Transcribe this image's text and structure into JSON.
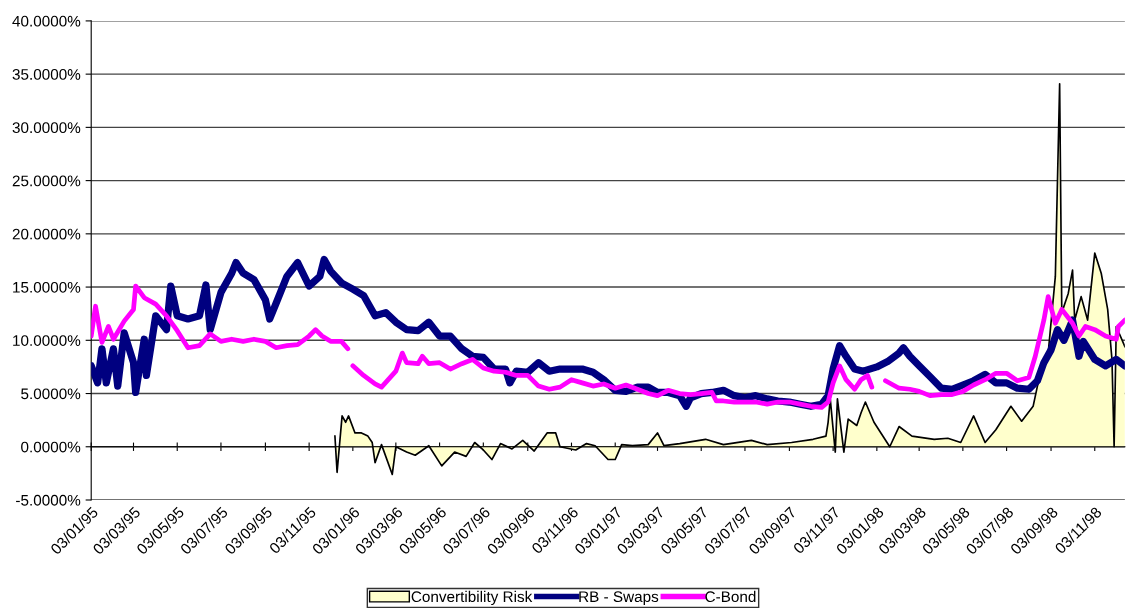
{
  "chart_data": {
    "type": "line",
    "ylim": [
      -5,
      40
    ],
    "yticks": [
      {
        "value": -5,
        "label": "-5.0000%"
      },
      {
        "value": 0,
        "label": "0.0000%"
      },
      {
        "value": 5,
        "label": "5.0000%"
      },
      {
        "value": 10,
        "label": "10.0000%"
      },
      {
        "value": 15,
        "label": "15.0000%"
      },
      {
        "value": 20,
        "label": "20.0000%"
      },
      {
        "value": 25,
        "label": "25.0000%"
      },
      {
        "value": 30,
        "label": "30.0000%"
      },
      {
        "value": 35,
        "label": "35.0000%"
      },
      {
        "value": 40,
        "label": "40.0000%"
      }
    ],
    "xlim": [
      "1995-01-03",
      "1998-12-15"
    ],
    "xticks": [
      {
        "value": "1995-01-03",
        "label": "03/01/95"
      },
      {
        "value": "1995-03-03",
        "label": "03/03/95"
      },
      {
        "value": "1995-05-03",
        "label": "03/05/95"
      },
      {
        "value": "1995-07-03",
        "label": "03/07/95"
      },
      {
        "value": "1995-09-03",
        "label": "03/09/95"
      },
      {
        "value": "1995-11-03",
        "label": "03/11/95"
      },
      {
        "value": "1996-01-03",
        "label": "03/01/96"
      },
      {
        "value": "1996-03-03",
        "label": "03/03/96"
      },
      {
        "value": "1996-05-03",
        "label": "03/05/96"
      },
      {
        "value": "1996-07-03",
        "label": "03/07/96"
      },
      {
        "value": "1996-09-03",
        "label": "03/09/96"
      },
      {
        "value": "1996-11-03",
        "label": "03/11/96"
      },
      {
        "value": "1997-01-03",
        "label": "03/01/97"
      },
      {
        "value": "1997-03-03",
        "label": "03/03/97"
      },
      {
        "value": "1997-05-03",
        "label": "03/05/97"
      },
      {
        "value": "1997-07-03",
        "label": "03/07/97"
      },
      {
        "value": "1997-09-03",
        "label": "03/09/97"
      },
      {
        "value": "1997-11-03",
        "label": "03/11/97"
      },
      {
        "value": "1998-01-03",
        "label": "03/01/98"
      },
      {
        "value": "1998-03-03",
        "label": "03/03/98"
      },
      {
        "value": "1998-05-03",
        "label": "03/05/98"
      },
      {
        "value": "1998-07-03",
        "label": "03/07/98"
      },
      {
        "value": "1998-09-03",
        "label": "03/09/98"
      },
      {
        "value": "1998-11-03",
        "label": "03/11/98"
      }
    ],
    "grid": "y",
    "legend": "bottom",
    "series": [
      {
        "name": "Convertibility Risk",
        "type": "area",
        "color": "#ffffcc",
        "x": [
          "1995-12-09",
          "1995-12-12",
          "1995-12-19",
          "1995-12-24",
          "1995-12-28",
          "1996-01-06",
          "1996-01-15",
          "1996-01-24",
          "1996-01-30",
          "1996-02-03",
          "1996-02-12",
          "1996-02-27",
          "1996-03-03",
          "1996-03-18",
          "1996-03-30",
          "1996-04-18",
          "1996-05-06",
          "1996-05-24",
          "1996-06-09",
          "1996-06-21",
          "1996-07-03",
          "1996-07-15",
          "1996-07-27",
          "1996-08-12",
          "1996-08-27",
          "1996-09-12",
          "1996-09-30",
          "1996-10-12",
          "1996-10-18",
          "1996-11-09",
          "1996-11-24",
          "1996-12-06",
          "1996-12-24",
          "1997-01-03",
          "1997-01-12",
          "1997-01-27",
          "1997-02-18",
          "1997-03-03",
          "1997-03-12",
          "1997-04-03",
          "1997-05-09",
          "1997-06-03",
          "1997-07-12",
          "1997-08-03",
          "1997-09-06",
          "1997-10-06",
          "1997-10-24",
          "1997-10-27",
          "1997-10-30",
          "1997-11-06",
          "1997-11-09",
          "1997-11-18",
          "1997-11-24",
          "1997-12-06",
          "1997-12-12",
          "1997-12-18",
          "1997-12-30",
          "1998-01-21",
          "1998-02-03",
          "1998-02-21",
          "1998-03-24",
          "1998-04-12",
          "1998-04-30",
          "1998-05-18",
          "1998-06-03",
          "1998-06-18",
          "1998-07-09",
          "1998-07-24",
          "1998-08-09",
          "1998-08-15",
          "1998-08-30",
          "1998-09-09",
          "1998-09-15",
          "1998-09-18",
          "1998-09-27",
          "1998-10-03",
          "1998-10-06",
          "1998-10-15",
          "1998-10-24",
          "1998-11-03",
          "1998-11-12",
          "1998-11-21",
          "1998-11-27",
          "1998-11-30",
          "1998-12-03",
          "1998-12-15"
        ],
        "values": [
          1.0,
          -2.4,
          2.9,
          2.3,
          2.9,
          1.3,
          1.3,
          1.0,
          0.4,
          -1.5,
          0.2,
          -2.6,
          0,
          -0.5,
          -0.8,
          0.1,
          -1.8,
          -0.5,
          -0.9,
          0.4,
          -0.3,
          -1.2,
          0.3,
          -0.2,
          0.6,
          -0.4,
          1.3,
          1.3,
          0,
          -0.3,
          0.3,
          0.1,
          -1.2,
          -1.2,
          0.2,
          0.1,
          0.2,
          1.3,
          0.1,
          0.3,
          0.7,
          0.2,
          0.6,
          0.2,
          0.4,
          0.7,
          1.0,
          2.3,
          4.5,
          -0.5,
          4.5,
          -0.5,
          2.6,
          2.0,
          3.2,
          4.2,
          2.3,
          0,
          1.9,
          1.0,
          0.7,
          0.8,
          0.4,
          2.9,
          0.4,
          1.6,
          3.8,
          2.4,
          3.8,
          5.7,
          8.8,
          16,
          34.1,
          12.6,
          14.4,
          16.6,
          11.9,
          14.1,
          11.9,
          18.2,
          16.3,
          12.9,
          8.2,
          0,
          11.3,
          9.4
        ]
      },
      {
        "name": "RB - Swaps",
        "color": "#000080",
        "x": [
          "1995-01-03",
          "1995-01-12",
          "1995-01-18",
          "1995-01-24",
          "1995-02-03",
          "1995-02-09",
          "1995-02-18",
          "1995-03-03",
          "1995-03-06",
          "1995-03-18",
          "1995-03-21",
          "1995-04-03",
          "1995-04-18",
          "1995-04-24",
          "1995-05-03",
          "1995-05-18",
          "1995-06-03",
          "1995-06-12",
          "1995-06-18",
          "1995-07-03",
          "1995-07-18",
          "1995-07-24",
          "1995-08-03",
          "1995-08-18",
          "1995-09-03",
          "1995-09-09",
          "1995-09-18",
          "1995-10-03",
          "1995-10-18",
          "1995-11-03",
          "1995-11-18",
          "1995-11-24",
          "1995-12-03",
          "1995-12-18",
          "1996-01-03",
          "1996-01-18",
          "1996-02-03",
          "1996-02-18",
          "1996-03-03",
          "1996-03-18",
          "1996-04-03",
          "1996-04-18",
          "1996-05-03",
          "1996-05-18",
          "1996-06-03",
          "1996-06-18",
          "1996-07-03",
          "1996-07-18",
          "1996-08-03",
          "1996-08-09",
          "1996-08-18",
          "1996-09-03",
          "1996-09-18",
          "1996-10-03",
          "1996-10-18",
          "1996-11-03",
          "1996-11-18",
          "1996-12-03",
          "1996-12-18",
          "1997-01-03",
          "1997-01-18",
          "1997-02-03",
          "1997-02-18",
          "1997-03-03",
          "1997-03-18",
          "1997-04-03",
          "1997-04-12",
          "1997-04-18",
          "1997-05-03",
          "1997-05-18",
          "1997-06-03",
          "1997-06-18",
          "1997-07-03",
          "1997-07-18",
          "1997-08-03",
          "1997-08-18",
          "1997-09-03",
          "1997-09-18",
          "1997-10-03",
          "1997-10-18",
          "1997-10-27",
          "1997-11-03",
          "1997-11-12",
          "1997-11-21",
          "1997-12-03",
          "1997-12-15",
          "1998-01-03",
          "1998-01-18",
          "1998-02-03",
          "1998-02-09",
          "1998-02-18",
          "1998-03-03",
          "1998-03-18",
          "1998-04-03",
          "1998-04-18",
          "1998-05-03",
          "1998-05-18",
          "1998-06-03",
          "1998-06-18",
          "1998-07-03",
          "1998-07-18",
          "1998-08-03",
          "1998-08-15",
          "1998-08-24",
          "1998-09-03",
          "1998-09-12",
          "1998-09-21",
          "1998-10-03",
          "1998-10-12",
          "1998-10-18",
          "1998-11-03",
          "1998-11-18",
          "1998-12-03",
          "1998-12-15"
        ],
        "values": [
          7.6,
          6,
          9.2,
          6,
          9.2,
          5.7,
          10.7,
          7.9,
          5.1,
          10.1,
          6.7,
          12.3,
          11,
          15.1,
          12.3,
          12,
          12.3,
          15.2,
          11,
          14.5,
          16.3,
          17.3,
          16.3,
          15.7,
          13.8,
          12,
          13.5,
          16,
          17.3,
          15.1,
          16,
          17.6,
          16.5,
          15.4,
          14.8,
          14.2,
          12.3,
          12.6,
          11.7,
          11,
          10.9,
          11.7,
          10.4,
          10.4,
          9.2,
          8.5,
          8.4,
          7.3,
          7.3,
          6,
          7.1,
          7,
          7.9,
          7.1,
          7.3,
          7.3,
          7.3,
          7,
          6.3,
          5.3,
          5.2,
          5.6,
          5.6,
          5.1,
          5.1,
          4.8,
          3.8,
          4.6,
          5,
          5.1,
          5.3,
          4.8,
          4.6,
          4.8,
          4.5,
          4.3,
          4.2,
          4,
          3.8,
          4,
          4.8,
          7.3,
          9.5,
          8.5,
          7.3,
          7.1,
          7.5,
          8,
          8.8,
          9.3,
          8.5,
          7.6,
          6.6,
          5.5,
          5.4,
          5.8,
          6.2,
          6.8,
          6,
          6,
          5.5,
          5.4,
          6.2,
          7.9,
          9.1,
          11,
          10,
          11.9,
          8.5,
          9.9,
          8.2,
          7.6,
          8.2,
          7.6
        ]
      },
      {
        "name": "C-Bond",
        "color": "#ff00ff",
        "x": [
          "1995-01-03",
          "1995-01-09",
          "1995-01-18",
          "1995-01-27",
          "1995-02-03",
          "1995-02-18",
          "1995-03-03",
          "1995-03-06",
          "1995-03-18",
          "1995-04-03",
          "1995-04-18",
          "1995-05-03",
          "1995-05-18",
          "1995-06-03",
          "1995-06-18",
          "1995-07-03",
          "1995-07-18",
          "1995-08-03",
          "1995-08-18",
          "1995-09-03",
          "1995-09-18",
          "1995-10-03",
          "1995-10-18",
          "1995-11-03",
          "1995-11-12",
          "1995-11-21",
          "1995-12-03",
          "1995-12-18",
          "1995-12-27",
          "1995-12-30",
          "1996-01-03",
          "1996-01-18",
          "1996-02-03",
          "1996-02-12",
          "1996-03-03",
          "1996-03-12",
          "1996-03-18",
          "1996-04-03",
          "1996-04-09",
          "1996-04-18",
          "1996-05-03",
          "1996-05-18",
          "1996-06-03",
          "1996-06-18",
          "1996-07-03",
          "1996-07-18",
          "1996-08-03",
          "1996-08-18",
          "1996-09-03",
          "1996-09-18",
          "1996-10-03",
          "1996-10-18",
          "1996-11-03",
          "1996-11-18",
          "1996-12-03",
          "1996-12-18",
          "1997-01-03",
          "1997-01-18",
          "1997-02-03",
          "1997-02-18",
          "1997-03-03",
          "1997-03-18",
          "1997-04-03",
          "1997-04-18",
          "1997-05-03",
          "1997-05-18",
          "1997-05-24",
          "1997-06-03",
          "1997-06-18",
          "1997-07-03",
          "1997-07-18",
          "1997-08-03",
          "1997-08-18",
          "1997-09-03",
          "1997-09-18",
          "1997-10-03",
          "1997-10-18",
          "1997-10-27",
          "1997-11-03",
          "1997-11-12",
          "1997-11-21",
          "1997-12-03",
          "1997-12-12",
          "1997-12-21",
          "1997-12-27",
          "1998-01-06",
          "1998-01-15",
          "1998-02-03",
          "1998-02-18",
          "1998-03-03",
          "1998-03-18",
          "1998-04-03",
          "1998-04-18",
          "1998-05-03",
          "1998-05-18",
          "1998-06-03",
          "1998-06-18",
          "1998-07-03",
          "1998-07-18",
          "1998-08-03",
          "1998-08-12",
          "1998-08-24",
          "1998-08-30",
          "1998-09-09",
          "1998-09-18",
          "1998-10-03",
          "1998-10-12",
          "1998-10-21",
          "1998-11-03",
          "1998-11-18",
          "1998-12-03",
          "1998-12-06",
          "1998-12-15"
        ],
        "values": [
          10.4,
          13.2,
          9.8,
          11.3,
          10.1,
          11.8,
          12.9,
          15.1,
          14,
          13.4,
          12.3,
          10.9,
          9.3,
          9.5,
          10.6,
          9.9,
          10.1,
          9.9,
          10.1,
          9.9,
          9.3,
          9.5,
          9.6,
          10.4,
          11,
          10.4,
          9.9,
          9.9,
          9.2,
          null,
          7.6,
          6.7,
          5.9,
          5.6,
          7.1,
          8.8,
          7.9,
          7.8,
          8.5,
          7.8,
          7.9,
          7.3,
          7.8,
          8.2,
          7.4,
          7.1,
          7,
          6.7,
          6.7,
          5.7,
          5.4,
          5.6,
          6.3,
          6,
          5.7,
          5.9,
          5.5,
          5.8,
          5.4,
          5,
          4.8,
          5.3,
          5,
          4.9,
          5,
          5.1,
          4.3,
          4.3,
          4.2,
          4.2,
          4.2,
          4,
          4.2,
          4.2,
          4,
          3.8,
          3.7,
          4.2,
          6,
          7.6,
          6.3,
          5.4,
          6.3,
          6.7,
          5.6,
          null,
          6.2,
          5.5,
          5.4,
          5.2,
          4.8,
          4.9,
          4.9,
          5.2,
          5.8,
          6.3,
          6.9,
          6.9,
          6.2,
          6.5,
          8.5,
          11.9,
          14.1,
          11.6,
          12.9,
          11.6,
          10.4,
          11.3,
          11,
          10.4,
          10.1,
          11.3,
          11.9
        ]
      }
    ]
  }
}
